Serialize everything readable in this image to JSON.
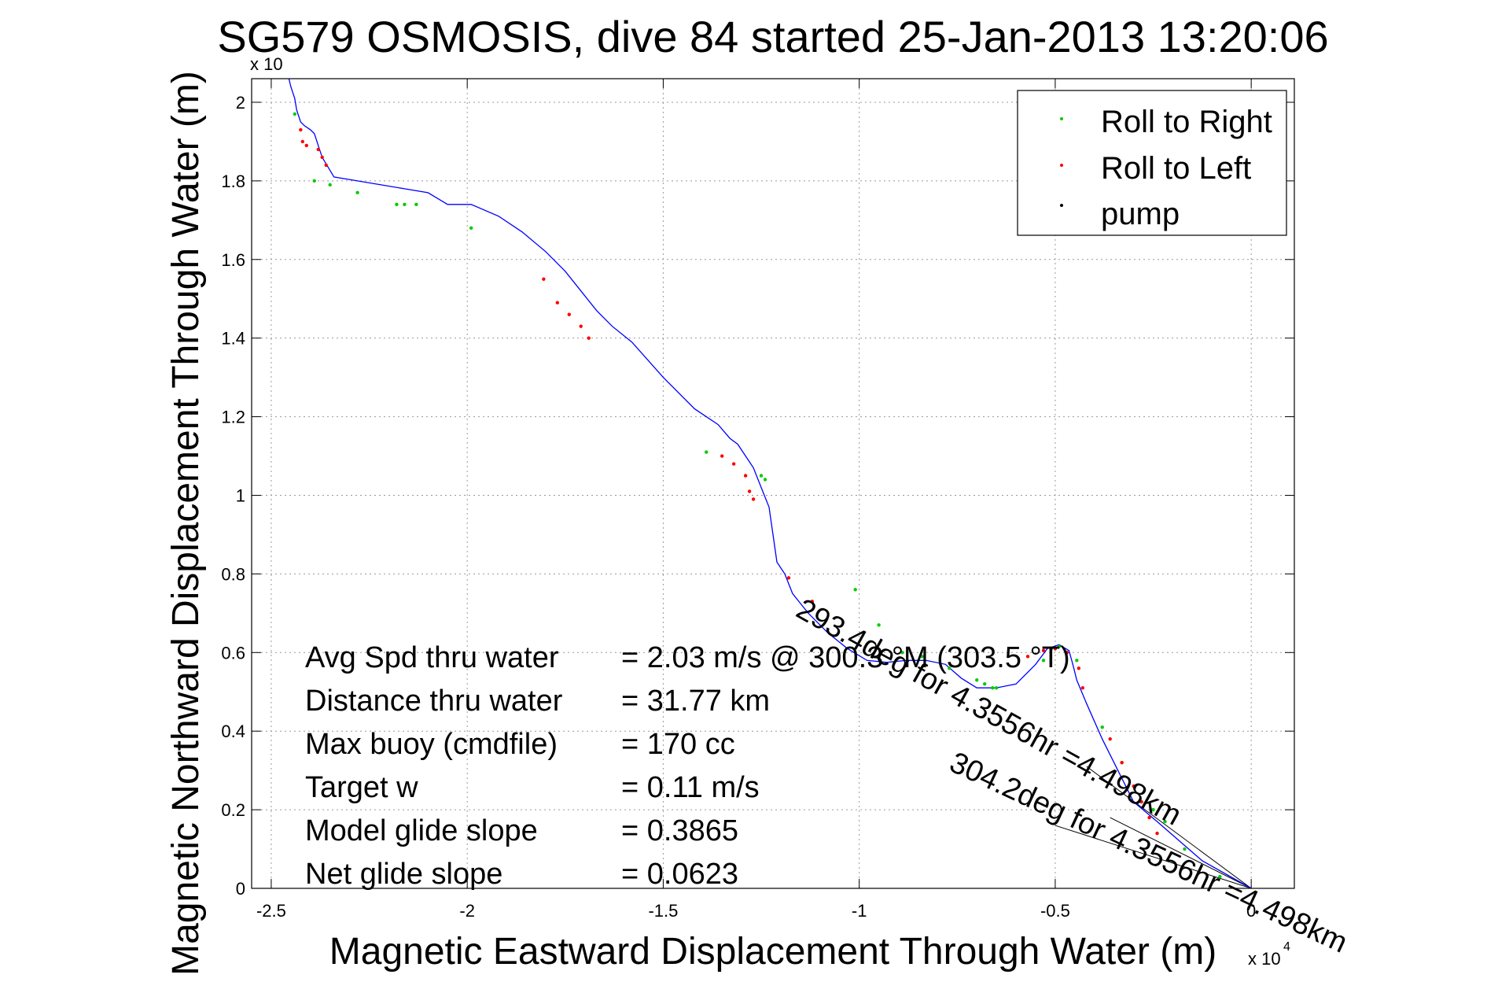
{
  "chart_data": {
    "type": "line",
    "title": "SG579 OSMOSIS, dive 84 started 25-Jan-2013 13:20:06",
    "xlabel": "Magnetic Eastward Displacement Through Water (m)",
    "ylabel": "Magnetic Northward Displacement Through Water (m)",
    "x_multiplier": "x 10",
    "x_multiplier_exp": "4",
    "y_multiplier": "x 10",
    "xlim": [
      -25500,
      1100
    ],
    "ylim": [
      0,
      20600
    ],
    "x_ticks": [
      -25000,
      -20000,
      -15000,
      -10000,
      -5000,
      0
    ],
    "x_tick_labels": [
      "-2.5",
      "-2",
      "-1.5",
      "-1",
      "-0.5",
      "0"
    ],
    "y_ticks": [
      0,
      2000,
      4000,
      6000,
      8000,
      10000,
      12000,
      14000,
      16000,
      18000,
      20000
    ],
    "y_tick_labels": [
      "0",
      "0.2",
      "0.4",
      "0.6",
      "0.8",
      "1",
      "1.2",
      "1.4",
      "1.6",
      "1.8",
      "2"
    ],
    "grid": true,
    "legend_position": "top-right",
    "legend": [
      {
        "label": "Roll to Right",
        "color": "#00cc00"
      },
      {
        "label": "Roll to Left",
        "color": "#ff0000"
      },
      {
        "label": "pump",
        "color": "#000000"
      }
    ],
    "line_color": "#0000ff",
    "track": {
      "x": [
        0,
        -1250,
        -2400,
        -3000,
        -3800,
        -4200,
        -4450,
        -4550,
        -4650,
        -4900,
        -5200,
        -5500,
        -6000,
        -6500,
        -7000,
        -7400,
        -7800,
        -8300,
        -8800,
        -9300,
        -9800,
        -10300,
        -10800,
        -11300,
        -11700,
        -11900,
        -12100,
        -12200,
        -12300,
        -12500,
        -12700,
        -12900,
        -13100,
        -13300,
        -13600,
        -14200,
        -15000,
        -15800,
        -16300,
        -16700,
        -17100,
        -17500,
        -18000,
        -18600,
        -19200,
        -19900,
        -20500,
        -21000,
        -21600,
        -22200,
        -22800,
        -23400,
        -23700,
        -23800,
        -23900,
        -24000,
        -24150,
        -24250,
        -24350,
        -24400,
        -24500,
        -24550
      ],
      "y": [
        0,
        700,
        1700,
        2200,
        3800,
        4700,
        5300,
        5700,
        6050,
        6200,
        6100,
        5700,
        5200,
        5100,
        5100,
        5350,
        5700,
        5800,
        5800,
        5750,
        5800,
        6100,
        6500,
        7000,
        7500,
        8000,
        8300,
        9000,
        9700,
        10200,
        10700,
        11000,
        11300,
        11450,
        11800,
        12200,
        13000,
        13900,
        14300,
        14700,
        15200,
        15700,
        16200,
        16700,
        17100,
        17400,
        17400,
        17700,
        17800,
        17900,
        18000,
        18100,
        18600,
        18900,
        19200,
        19300,
        19400,
        19500,
        19800,
        20100,
        20400,
        20600
      ]
    },
    "roll_right_points": {
      "x": [
        -24400,
        -23900,
        -23500,
        -22800,
        -21800,
        -21600,
        -21300,
        -19900,
        -13900,
        -12500,
        -12400,
        -10100,
        -9500,
        -8900,
        -8400,
        -7700,
        -7000,
        -6800,
        -6600,
        -6500,
        -5300,
        -5100,
        -4900,
        -4700,
        -4450,
        -3800,
        -3300,
        -2500,
        -2200,
        -1700,
        -800
      ],
      "y": [
        19700,
        18000,
        17900,
        17700,
        17400,
        17400,
        17400,
        16800,
        11100,
        10500,
        10400,
        7600,
        6700,
        6000,
        5900,
        5600,
        5300,
        5200,
        5100,
        5100,
        5800,
        6100,
        6150,
        6000,
        5800,
        4100,
        3200,
        2000,
        1700,
        1000,
        300
      ]
    },
    "roll_left_points": {
      "x": [
        -24250,
        -24200,
        -24100,
        -23800,
        -23700,
        -23600,
        -18050,
        -17700,
        -17400,
        -17100,
        -16900,
        -13500,
        -13200,
        -12900,
        -12800,
        -12700,
        -11800,
        -11200,
        -5700,
        -5300,
        -5000,
        -4700,
        -4400,
        -4300,
        -3600,
        -3300,
        -3000,
        -2800,
        -2600,
        -2400
      ],
      "y": [
        19300,
        19000,
        18900,
        18800,
        18600,
        18400,
        15500,
        14900,
        14600,
        14300,
        14000,
        11000,
        10800,
        10500,
        10100,
        9900,
        7900,
        7300,
        5900,
        6050,
        6100,
        6000,
        5600,
        5100,
        3800,
        3200,
        2600,
        2200,
        1800,
        1400
      ]
    },
    "heading_lines": [
      {
        "x": [
          -4200,
          0
        ],
        "y": [
          3100,
          0
        ]
      },
      {
        "x": [
          -5000,
          0
        ],
        "y": [
          1600,
          0
        ]
      },
      {
        "x": [
          -3600,
          0
        ],
        "y": [
          1800,
          0
        ]
      }
    ],
    "annotations": {
      "rotated_1": "293.4deg for 4.3556hr =4.498km",
      "rotated_2": "304.2deg for 4.3556hr =4.498km",
      "stats": [
        {
          "label": "Avg Spd thru water",
          "value": "=  2.03 m/s @ 300.3 °M (303.5 °T)"
        },
        {
          "label": "Distance thru water",
          "value": "= 31.77 km"
        },
        {
          "label": "Max buoy (cmdfile)",
          "value": "= 170 cc"
        },
        {
          "label": "Target w",
          "value": "= 0.11 m/s"
        },
        {
          "label": "Model glide slope",
          "value": "= 0.3865"
        },
        {
          "label": "Net glide slope",
          "value": "= 0.0623"
        }
      ]
    }
  }
}
